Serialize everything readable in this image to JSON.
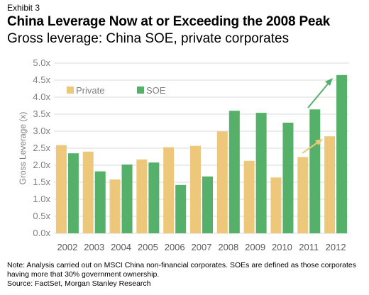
{
  "exhibit": "Exhibit 3",
  "title": "China Leverage Now at or Exceeding the 2008 Peak",
  "subtitle": "Gross leverage: China SOE, private corporates",
  "note": "Note: Analysis carried out on MSCI China non-financial corporates. SOEs are defined as those corporates having more that 30% government ownership.",
  "source": "Source: FactSet, Morgan Stanley Research",
  "colors": {
    "private": "#eec87a",
    "soe": "#55b06a",
    "grid": "#d9d9d9",
    "axis_text": "#7f7f7f"
  },
  "chart_data": {
    "type": "bar",
    "categories": [
      "2002",
      "2003",
      "2004",
      "2005",
      "2006",
      "2007",
      "2008",
      "2009",
      "2010",
      "2011",
      "2012"
    ],
    "series": [
      {
        "name": "Private",
        "values": [
          2.59,
          2.4,
          1.58,
          2.17,
          2.53,
          2.57,
          2.99,
          2.13,
          1.64,
          2.24,
          2.85
        ]
      },
      {
        "name": "SOE",
        "values": [
          2.35,
          1.82,
          2.02,
          2.08,
          1.42,
          1.67,
          3.6,
          3.54,
          3.25,
          3.64,
          4.65
        ]
      }
    ],
    "ylabel": "Gross Leverage (x)",
    "ylim": [
      0,
      5
    ],
    "yticks": [
      "0.0x",
      "0.5x",
      "1.0x",
      "1.5x",
      "2.0x",
      "2.5x",
      "3.0x",
      "3.5x",
      "4.0x",
      "4.5x",
      "5.0x"
    ],
    "grid": true,
    "legend_position": "top-left",
    "annotations": "upward arrows above 2011-2012 bars for both series"
  }
}
